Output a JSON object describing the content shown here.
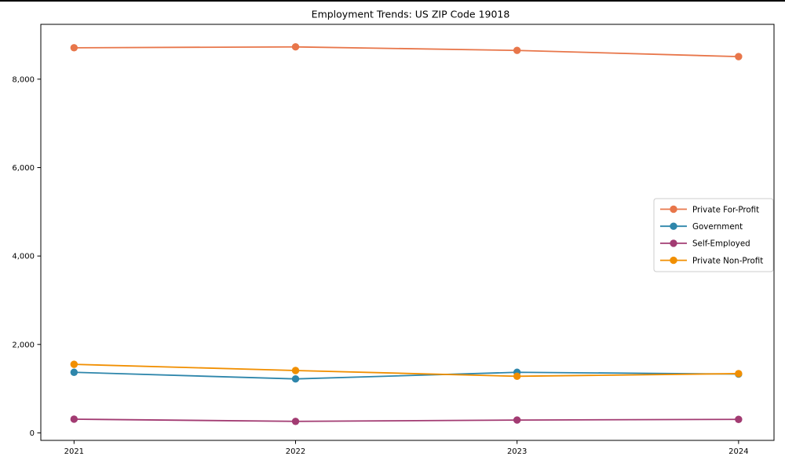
{
  "chart_data": {
    "type": "line",
    "title": "Employment Trends: US ZIP Code 19018",
    "xlabel": "",
    "ylabel": "",
    "x": [
      2021,
      2022,
      2023,
      2024
    ],
    "xticks": [
      "2021",
      "2022",
      "2023",
      "2024"
    ],
    "yticks": [
      0,
      2000,
      4000,
      6000,
      8000
    ],
    "xlim": [
      2020.85,
      2024.16
    ],
    "ylim": [
      -170,
      9240
    ],
    "grid": false,
    "marker": "circle",
    "legend_position": "center-right",
    "series": [
      {
        "name": "Private For-Profit",
        "color": "#e8764a",
        "values": [
          8710,
          8730,
          8650,
          8510
        ]
      },
      {
        "name": "Government",
        "color": "#2e86ab",
        "values": [
          1370,
          1220,
          1370,
          1330
        ]
      },
      {
        "name": "Self-Employed",
        "color": "#a23b72",
        "values": [
          310,
          260,
          290,
          305
        ]
      },
      {
        "name": "Private Non-Profit",
        "color": "#f18f01",
        "values": [
          1550,
          1410,
          1280,
          1340
        ]
      }
    ]
  },
  "figure": {
    "background": "#ffffff",
    "spine_color": "#000000",
    "legend_border_color": "#cccccc"
  }
}
